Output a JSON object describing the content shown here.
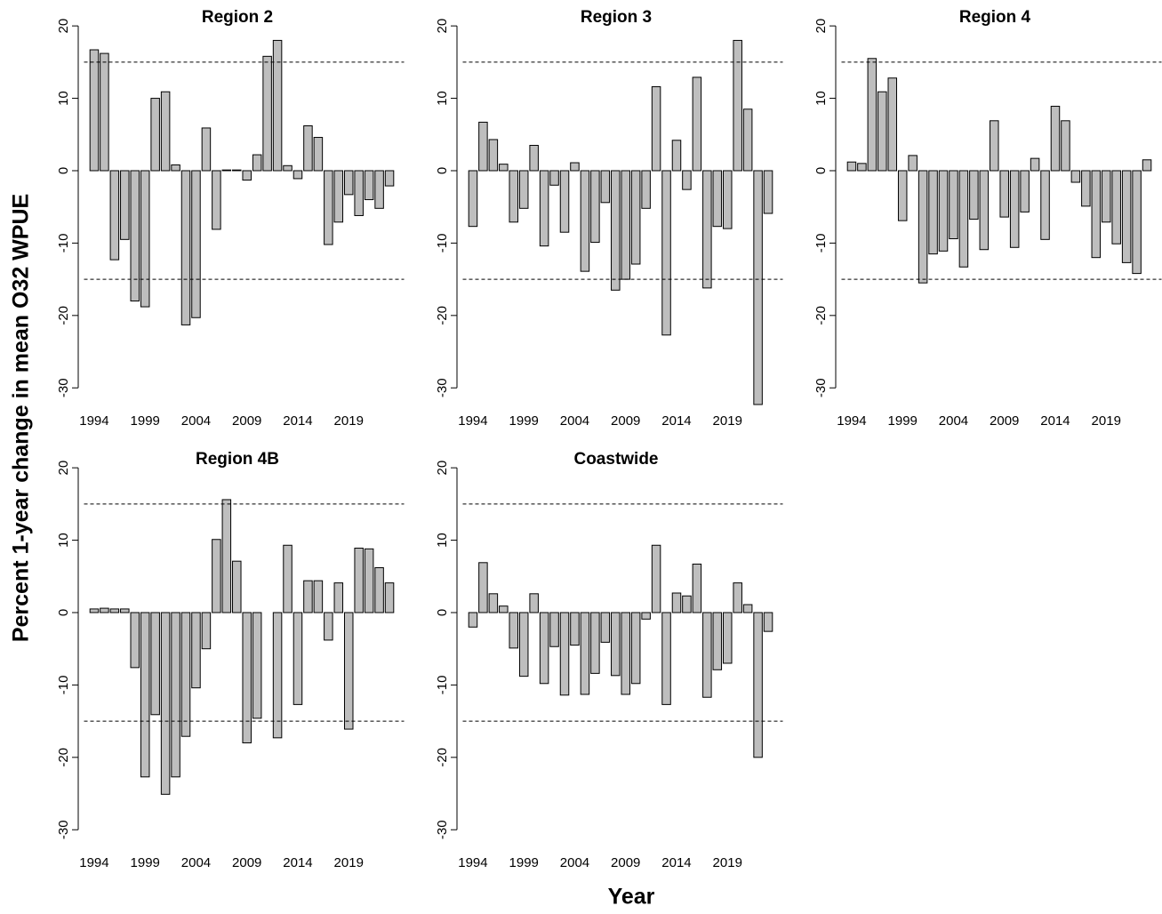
{
  "ylabel": "Percent 1-year change in mean O32 WPUE",
  "xlabel": "Year",
  "chart_data": [
    {
      "type": "bar",
      "title": "Region 2",
      "color": "#bebebe",
      "x": [
        1994,
        1995,
        1996,
        1997,
        1998,
        1999,
        2000,
        2001,
        2002,
        2003,
        2004,
        2005,
        2006,
        2007,
        2008,
        2009,
        2010,
        2011,
        2012,
        2013,
        2014,
        2015,
        2016,
        2017,
        2018,
        2019,
        2020,
        2021,
        2022,
        2023
      ],
      "values": [
        16.7,
        16.2,
        -12.3,
        -9.5,
        -18,
        -18.8,
        10,
        10.9,
        0.8,
        -21.3,
        -20.3,
        5.9,
        -8.1,
        0.1,
        0.1,
        -1.3,
        2.2,
        15.8,
        18,
        0.7,
        -1.1,
        6.2,
        4.6,
        -10.2,
        -7.1,
        -3.3,
        -6.2,
        -4,
        -5.2,
        -2.1
      ],
      "xlim": [
        1993,
        2024
      ],
      "xticks": [
        1994,
        1999,
        2004,
        2009,
        2014,
        2019
      ],
      "ylim": [
        -32.5,
        21
      ],
      "yticks": [
        -30,
        -20,
        -10,
        0,
        10,
        20
      ],
      "hlines": [
        15,
        -15
      ]
    },
    {
      "type": "bar",
      "title": "Region 3",
      "color": "#bebebe",
      "x": [
        1994,
        1995,
        1996,
        1997,
        1998,
        1999,
        2000,
        2001,
        2002,
        2003,
        2004,
        2005,
        2006,
        2007,
        2008,
        2009,
        2010,
        2011,
        2012,
        2013,
        2014,
        2015,
        2016,
        2017,
        2018,
        2019,
        2020,
        2021,
        2022,
        2023
      ],
      "values": [
        -7.7,
        6.7,
        4.3,
        0.9,
        -7.1,
        -5.2,
        3.5,
        -10.4,
        -2,
        -8.5,
        1.1,
        -13.9,
        -9.9,
        -4.4,
        -16.5,
        -15,
        -12.9,
        -5.2,
        11.6,
        -22.7,
        4.2,
        -2.6,
        12.9,
        -16.2,
        -7.7,
        -8,
        18,
        8.5,
        -32.3,
        -5.9
      ],
      "xlim": [
        1993,
        2024
      ],
      "xticks": [
        1994,
        1999,
        2004,
        2009,
        2014,
        2019
      ],
      "ylim": [
        -32.5,
        21
      ],
      "yticks": [
        -30,
        -20,
        -10,
        0,
        10,
        20
      ],
      "hlines": [
        15,
        -15
      ]
    },
    {
      "type": "bar",
      "title": "Region 4",
      "color": "#bebebe",
      "x": [
        1994,
        1995,
        1996,
        1997,
        1998,
        1999,
        2000,
        2001,
        2002,
        2003,
        2004,
        2005,
        2006,
        2007,
        2008,
        2009,
        2010,
        2011,
        2012,
        2013,
        2014,
        2015,
        2016,
        2017,
        2018,
        2019,
        2020,
        2021,
        2022,
        2023
      ],
      "values": [
        1.2,
        1,
        15.5,
        10.9,
        12.8,
        -6.9,
        2.1,
        -15.5,
        -11.5,
        -11.1,
        -9.4,
        -13.3,
        -6.7,
        -10.9,
        6.9,
        -6.4,
        -10.6,
        -5.7,
        1.7,
        -9.5,
        8.9,
        6.9,
        -1.6,
        -4.9,
        -12,
        -7.1,
        -10.1,
        -12.7,
        -14.2,
        1.5
      ],
      "xlim": [
        1993,
        2024
      ],
      "xticks": [
        1994,
        1999,
        2004,
        2009,
        2014,
        2019
      ],
      "ylim": [
        -32.5,
        21
      ],
      "yticks": [
        -30,
        -20,
        -10,
        0,
        10,
        20
      ],
      "hlines": [
        15,
        -15
      ]
    },
    {
      "type": "bar",
      "title": "Region 4B",
      "color": "#bebebe",
      "x": [
        1994,
        1995,
        1996,
        1997,
        1998,
        1999,
        2000,
        2001,
        2002,
        2003,
        2004,
        2005,
        2006,
        2007,
        2008,
        2009,
        2010,
        2011,
        2012,
        2013,
        2014,
        2015,
        2016,
        2017,
        2018,
        2019,
        2020,
        2021,
        2022,
        2023
      ],
      "values": [
        0.5,
        0.6,
        0.5,
        0.5,
        -7.6,
        -22.7,
        -14.1,
        -25.1,
        -22.7,
        -17.1,
        -10.4,
        -5,
        10.1,
        15.6,
        7.1,
        -18,
        -14.6,
        0,
        -17.3,
        9.3,
        -12.7,
        4.4,
        4.4,
        -3.8,
        4.1,
        -16.1,
        8.9,
        8.8,
        6.2,
        4.1
      ],
      "xlim": [
        1993,
        2024
      ],
      "xticks": [
        1994,
        1999,
        2004,
        2009,
        2014,
        2019
      ],
      "ylim": [
        -32.5,
        21
      ],
      "yticks": [
        -30,
        -20,
        -10,
        0,
        10,
        20
      ],
      "hlines": [
        15,
        -15
      ]
    },
    {
      "type": "bar",
      "title": "Coastwide",
      "color": "#bebebe",
      "x": [
        1994,
        1995,
        1996,
        1997,
        1998,
        1999,
        2000,
        2001,
        2002,
        2003,
        2004,
        2005,
        2006,
        2007,
        2008,
        2009,
        2010,
        2011,
        2012,
        2013,
        2014,
        2015,
        2016,
        2017,
        2018,
        2019,
        2020,
        2021,
        2022,
        2023
      ],
      "values": [
        -2,
        6.9,
        2.6,
        0.9,
        -4.9,
        -8.8,
        2.6,
        -9.8,
        -4.7,
        -11.4,
        -4.5,
        -11.3,
        -8.4,
        -4.1,
        -8.7,
        -11.3,
        -9.8,
        -0.9,
        9.3,
        -12.7,
        2.7,
        2.3,
        6.7,
        -11.7,
        -7.9,
        -7,
        4.1,
        1.1,
        -20,
        -2.6
      ],
      "xlim": [
        1993,
        2024
      ],
      "xticks": [
        1994,
        1999,
        2004,
        2009,
        2014,
        2019
      ],
      "ylim": [
        -32.5,
        21
      ],
      "yticks": [
        -30,
        -20,
        -10,
        0,
        10,
        20
      ],
      "hlines": [
        15,
        -15
      ]
    }
  ]
}
